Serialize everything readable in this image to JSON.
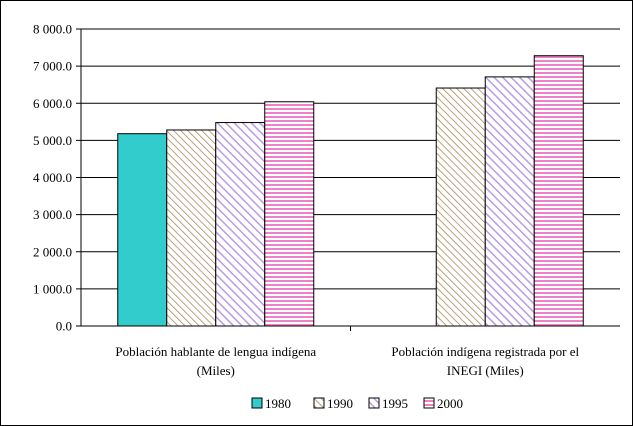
{
  "chart_data": {
    "type": "bar",
    "title": "",
    "xlabel": "",
    "ylabel": "",
    "ylim": [
      0,
      8000
    ],
    "yticks": [
      "0.0",
      "1 000.0",
      "2 000.0",
      "3 000.0",
      "4 000.0",
      "5 000.0",
      "6 000.0",
      "7 000.0",
      "8 000.0"
    ],
    "grid": true,
    "legend_position": "bottom",
    "categories": [
      [
        "Población hablante de lengua indígena",
        "(Miles)"
      ],
      [
        "Población indígena registrada por el",
        "INEGI (Miles)"
      ]
    ],
    "series": [
      {
        "name": "1980",
        "color": "#33cccc",
        "pattern": "solid",
        "values": [
          5180,
          null
        ]
      },
      {
        "name": "1990",
        "color": "#b09060",
        "pattern": "diagonal",
        "values": [
          5280,
          6410
        ]
      },
      {
        "name": "1995",
        "color": "#b79ce6",
        "pattern": "diagonal-wide",
        "values": [
          5480,
          6710
        ]
      },
      {
        "name": "2000",
        "color": "#ee82c8",
        "pattern": "horizontal",
        "values": [
          6040,
          7280
        ]
      }
    ]
  }
}
